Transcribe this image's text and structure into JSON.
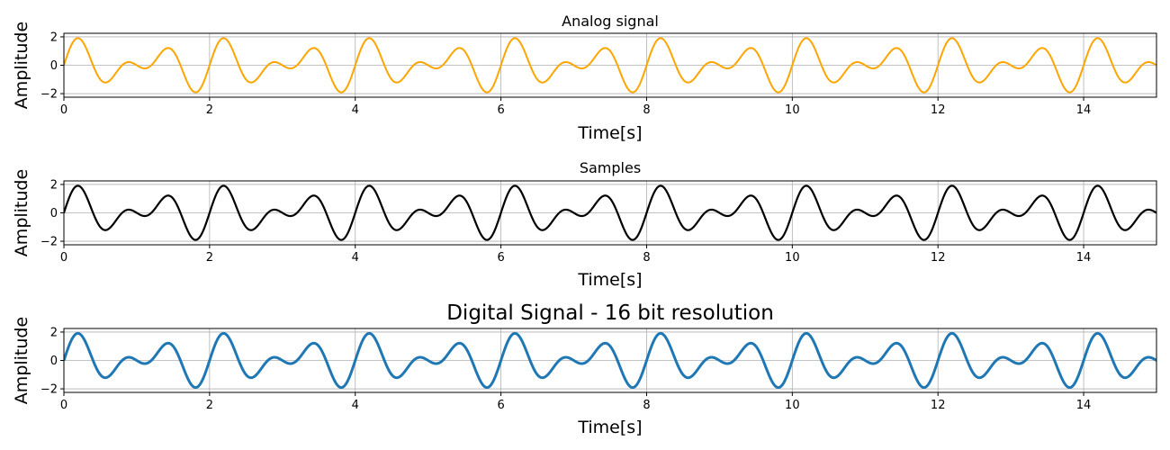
{
  "chart_data": [
    {
      "type": "line",
      "title": "Analog signal",
      "xlabel": "Time[s]",
      "ylabel": "Amplitude",
      "xlim": [
        0,
        15
      ],
      "ylim": [
        -2.25,
        2.25
      ],
      "xticks": [
        0,
        2,
        4,
        6,
        8,
        10,
        12,
        14
      ],
      "yticks": [
        -2,
        0,
        2
      ],
      "grid": true,
      "color": "#ffa500",
      "line_style": "thin",
      "series": [
        {
          "signal": "sin(2πt) + sin(2π·1.5t)",
          "x_range": [
            0,
            15
          ],
          "period": 2,
          "y_range": [
            -2.2,
            2.2
          ]
        }
      ]
    },
    {
      "type": "line",
      "title": "Samples",
      "xlabel": "Time[s]",
      "ylabel": "Amplitude",
      "xlim": [
        0,
        15
      ],
      "ylim": [
        -2.25,
        2.25
      ],
      "xticks": [
        0,
        2,
        4,
        6,
        8,
        10,
        12,
        14
      ],
      "yticks": [
        -2,
        0,
        2
      ],
      "grid": true,
      "color": "#000000",
      "line_style": "dense samples",
      "series": [
        {
          "signal": "sin(2πt) + sin(2π·1.5t)",
          "x_range": [
            0,
            15
          ],
          "period": 2,
          "y_range": [
            -2.2,
            2.2
          ]
        }
      ]
    },
    {
      "type": "line",
      "title": "Digital Signal - 16 bit resolution",
      "xlabel": "Time[s]",
      "ylabel": "Amplitude",
      "xlim": [
        0,
        15
      ],
      "ylim": [
        -2.25,
        2.25
      ],
      "xticks": [
        0,
        2,
        4,
        6,
        8,
        10,
        12,
        14
      ],
      "yticks": [
        -2,
        0,
        2
      ],
      "grid": true,
      "color": "#1f77b4",
      "line_style": "thick steps",
      "series": [
        {
          "signal": "sin(2πt) + sin(2π·1.5t)",
          "x_range": [
            0,
            15
          ],
          "period": 2,
          "y_range": [
            -2.2,
            2.2
          ],
          "quantization_bits": 16
        }
      ]
    }
  ]
}
